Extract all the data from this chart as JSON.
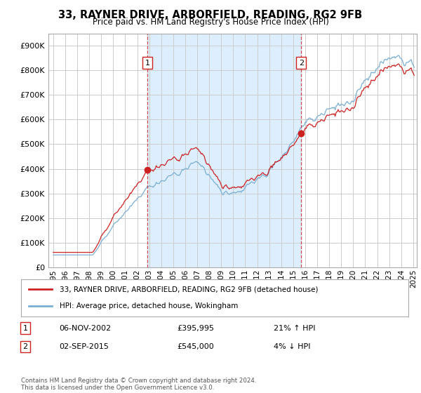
{
  "title": "33, RAYNER DRIVE, ARBORFIELD, READING, RG2 9FB",
  "subtitle": "Price paid vs. HM Land Registry's House Price Index (HPI)",
  "ylabel_ticks": [
    "£0",
    "£100K",
    "£200K",
    "£300K",
    "£400K",
    "£500K",
    "£600K",
    "£700K",
    "£800K",
    "£900K"
  ],
  "ytick_values": [
    0,
    100000,
    200000,
    300000,
    400000,
    500000,
    600000,
    700000,
    800000,
    900000
  ],
  "ylim": [
    0,
    950000
  ],
  "legend_label_red": "33, RAYNER DRIVE, ARBORFIELD, READING, RG2 9FB (detached house)",
  "legend_label_blue": "HPI: Average price, detached house, Wokingham",
  "transaction1_date": "06-NOV-2002",
  "transaction1_price": "£395,995",
  "transaction1_hpi": "21% ↑ HPI",
  "transaction2_date": "02-SEP-2015",
  "transaction2_price": "£545,000",
  "transaction2_hpi": "4% ↓ HPI",
  "footer": "Contains HM Land Registry data © Crown copyright and database right 2024.\nThis data is licensed under the Open Government Licence v3.0.",
  "red_color": "#cc2222",
  "blue_color": "#7aafd4",
  "fill_color": "#ddeeff",
  "vline_color": "#cc2222",
  "grid_color": "#cccccc",
  "background_color": "#ffffff",
  "transaction1_x": 2002.85,
  "transaction2_x": 2015.67,
  "transaction1_price_val": 395995,
  "transaction2_price_val": 545000
}
